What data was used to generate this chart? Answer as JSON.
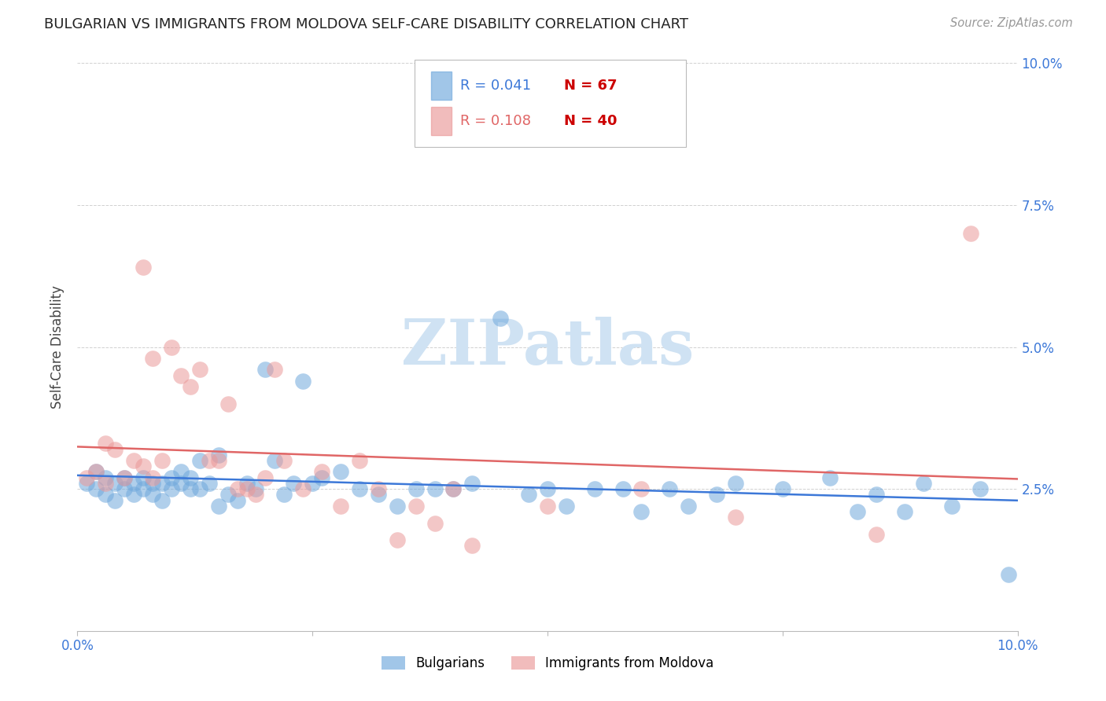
{
  "title": "BULGARIAN VS IMMIGRANTS FROM MOLDOVA SELF-CARE DISABILITY CORRELATION CHART",
  "source": "Source: ZipAtlas.com",
  "ylabel": "Self-Care Disability",
  "xlim": [
    0.0,
    0.1
  ],
  "ylim": [
    0.0,
    0.1
  ],
  "legend1_r": "R = 0.041",
  "legend1_n": "N = 67",
  "legend2_r": "R = 0.108",
  "legend2_n": "N = 40",
  "legend_label1": "Bulgarians",
  "legend_label2": "Immigrants from Moldova",
  "blue_color": "#6fa8dc",
  "pink_color": "#ea9999",
  "blue_line_color": "#3c78d8",
  "pink_line_color": "#e06666",
  "blue_text_color": "#3c78d8",
  "red_text_color": "#cc0000",
  "background_color": "#ffffff",
  "watermark_color": "#cfe2f3",
  "blue_scatter_x": [
    0.001,
    0.002,
    0.002,
    0.003,
    0.003,
    0.004,
    0.004,
    0.005,
    0.005,
    0.006,
    0.006,
    0.007,
    0.007,
    0.008,
    0.008,
    0.009,
    0.009,
    0.01,
    0.01,
    0.011,
    0.011,
    0.012,
    0.012,
    0.013,
    0.013,
    0.014,
    0.015,
    0.015,
    0.016,
    0.017,
    0.018,
    0.019,
    0.02,
    0.021,
    0.022,
    0.023,
    0.024,
    0.025,
    0.026,
    0.028,
    0.03,
    0.032,
    0.034,
    0.036,
    0.038,
    0.04,
    0.042,
    0.045,
    0.048,
    0.05,
    0.052,
    0.055,
    0.058,
    0.06,
    0.063,
    0.065,
    0.068,
    0.07,
    0.075,
    0.08,
    0.083,
    0.085,
    0.088,
    0.09,
    0.093,
    0.096,
    0.099
  ],
  "blue_scatter_y": [
    0.026,
    0.025,
    0.028,
    0.024,
    0.027,
    0.023,
    0.026,
    0.025,
    0.027,
    0.024,
    0.026,
    0.025,
    0.027,
    0.024,
    0.026,
    0.023,
    0.026,
    0.025,
    0.027,
    0.026,
    0.028,
    0.025,
    0.027,
    0.03,
    0.025,
    0.026,
    0.022,
    0.031,
    0.024,
    0.023,
    0.026,
    0.025,
    0.046,
    0.03,
    0.024,
    0.026,
    0.044,
    0.026,
    0.027,
    0.028,
    0.025,
    0.024,
    0.022,
    0.025,
    0.025,
    0.025,
    0.026,
    0.055,
    0.024,
    0.025,
    0.022,
    0.025,
    0.025,
    0.021,
    0.025,
    0.022,
    0.024,
    0.026,
    0.025,
    0.027,
    0.021,
    0.024,
    0.021,
    0.026,
    0.022,
    0.025,
    0.01
  ],
  "pink_scatter_x": [
    0.001,
    0.002,
    0.003,
    0.003,
    0.004,
    0.005,
    0.006,
    0.007,
    0.007,
    0.008,
    0.008,
    0.009,
    0.01,
    0.011,
    0.012,
    0.013,
    0.014,
    0.015,
    0.016,
    0.017,
    0.018,
    0.019,
    0.02,
    0.021,
    0.022,
    0.024,
    0.026,
    0.028,
    0.03,
    0.032,
    0.034,
    0.036,
    0.038,
    0.04,
    0.042,
    0.05,
    0.06,
    0.07,
    0.085,
    0.095
  ],
  "pink_scatter_y": [
    0.027,
    0.028,
    0.033,
    0.026,
    0.032,
    0.027,
    0.03,
    0.029,
    0.064,
    0.027,
    0.048,
    0.03,
    0.05,
    0.045,
    0.043,
    0.046,
    0.03,
    0.03,
    0.04,
    0.025,
    0.025,
    0.024,
    0.027,
    0.046,
    0.03,
    0.025,
    0.028,
    0.022,
    0.03,
    0.025,
    0.016,
    0.022,
    0.019,
    0.025,
    0.015,
    0.022,
    0.025,
    0.02,
    0.017,
    0.07
  ]
}
